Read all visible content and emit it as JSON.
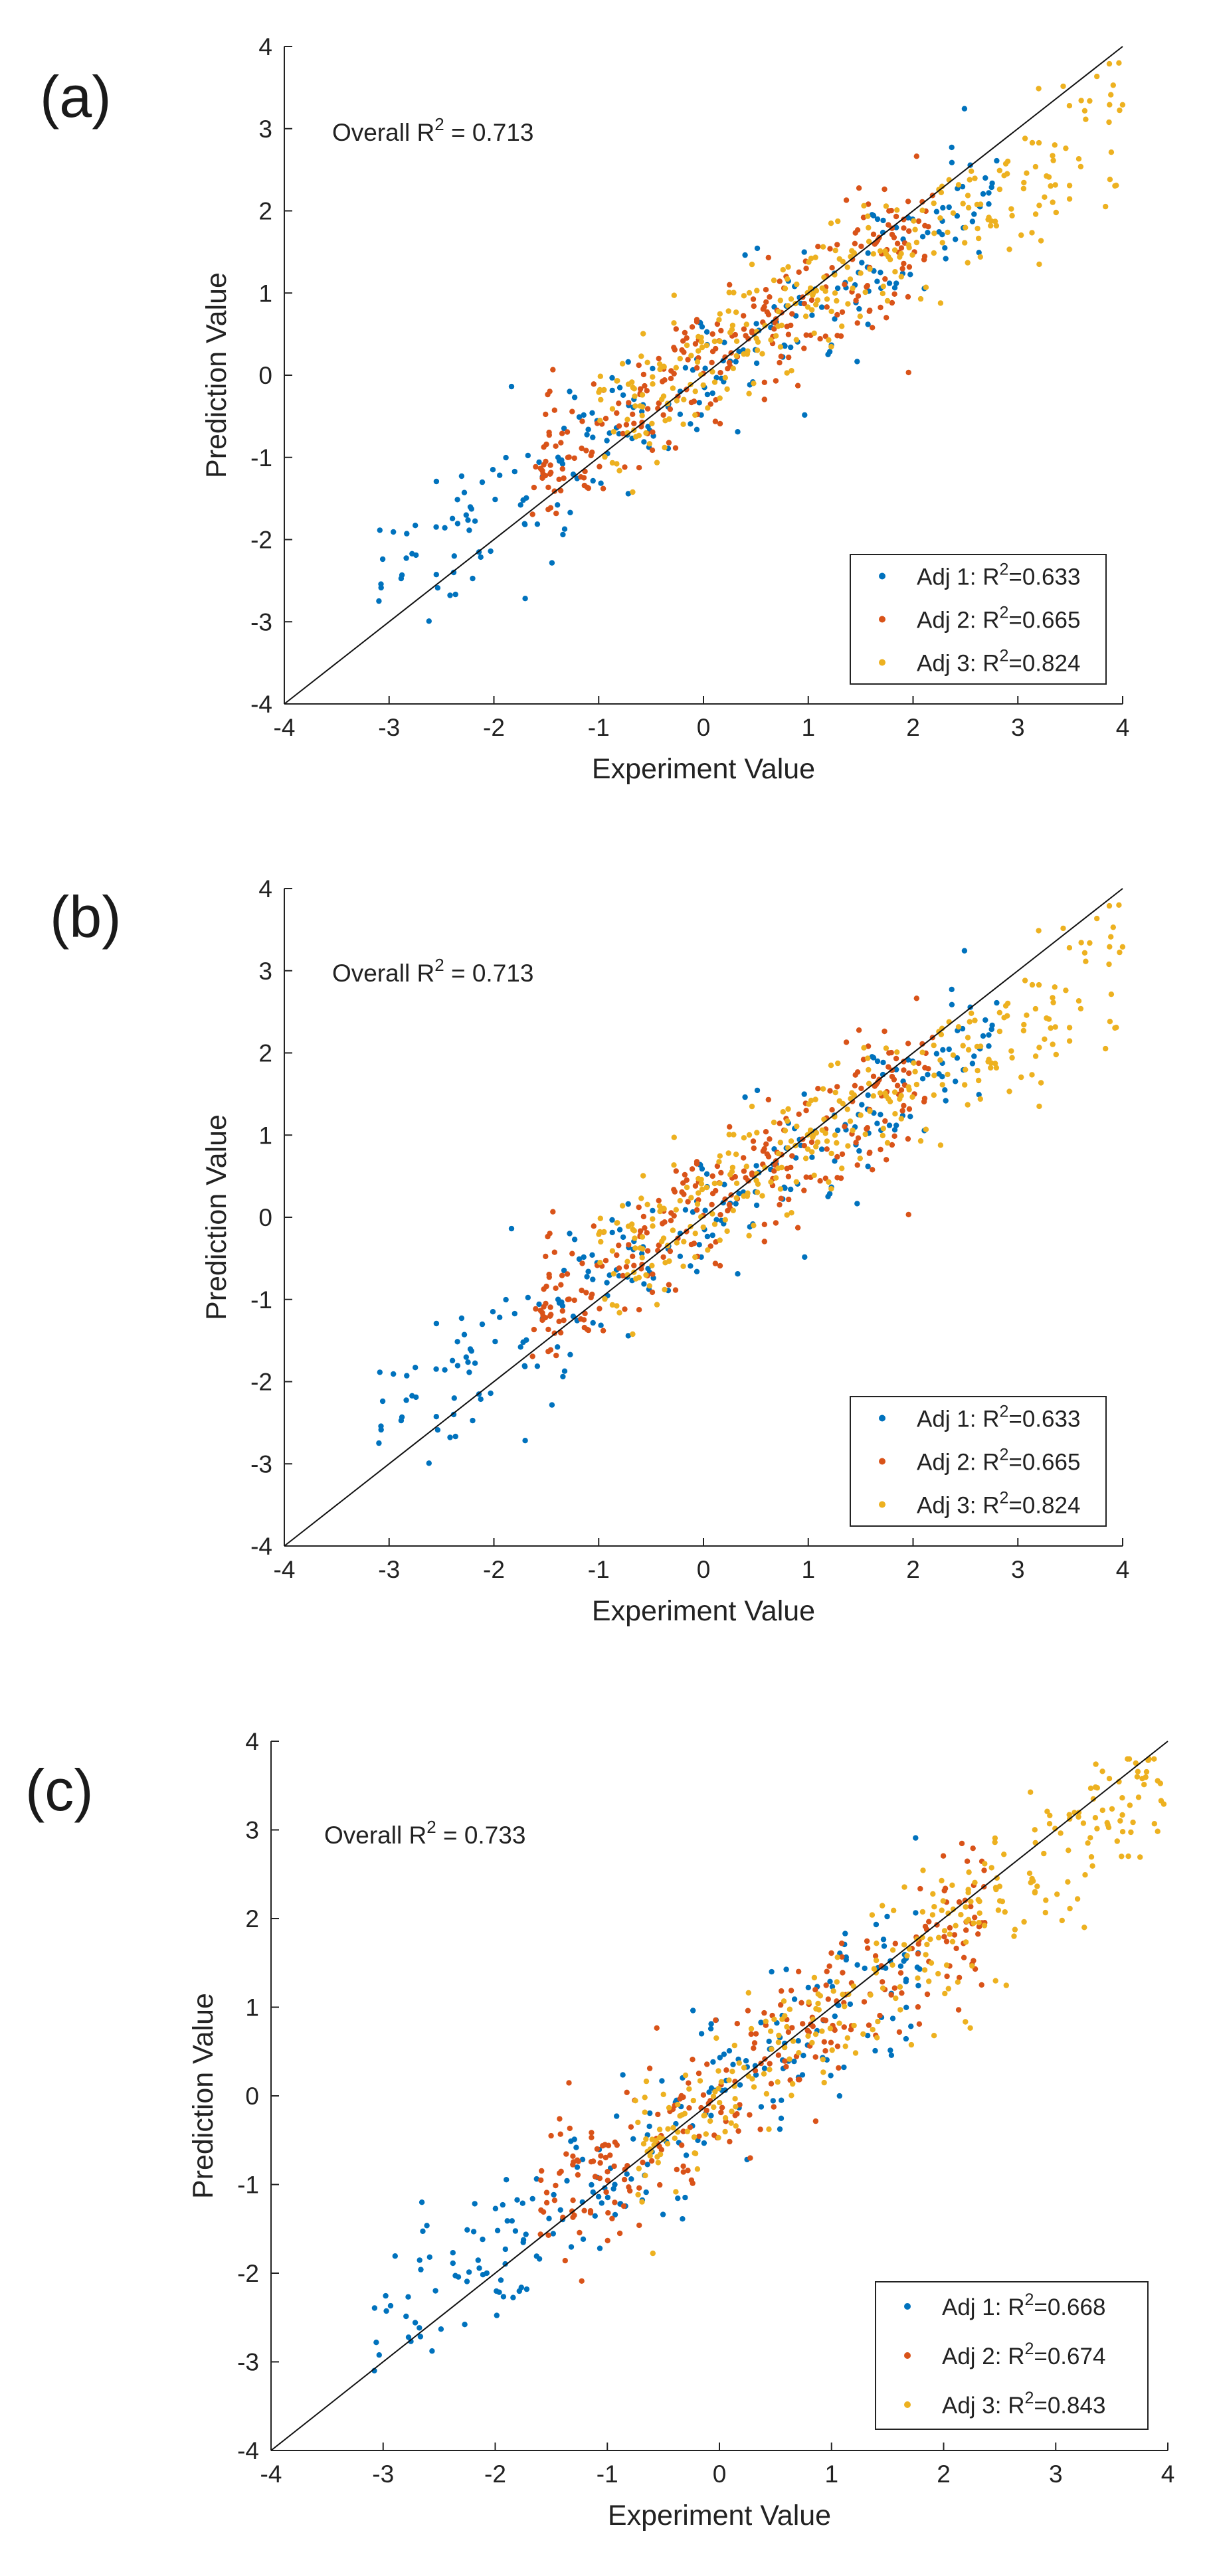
{
  "colors": {
    "adj1": "#0072BD",
    "adj2": "#D95319",
    "adj3": "#EDB120",
    "axis": "#222222",
    "line": "#111111"
  },
  "chart_data": [
    {
      "type": "scatter",
      "panel_label": "(a)",
      "xlabel": "Experiment Value",
      "ylabel": "Prediction Value",
      "xlim": [
        -4,
        4
      ],
      "ylim": [
        -4,
        4
      ],
      "xticks": [
        "-4",
        "-3",
        "-2",
        "-1",
        "0",
        "1",
        "2",
        "3",
        "4"
      ],
      "yticks": [
        "-4",
        "-3",
        "-2",
        "-1",
        "0",
        "1",
        "2",
        "3",
        "4"
      ],
      "overall_prefix": "Overall R",
      "overall_exp": "2",
      "overall_suffix": " = 0.713",
      "reference_line": "y = x",
      "legend_position": "bottom-right",
      "series": [
        {
          "name": "Adj 1",
          "label_prefix": "Adj 1: R",
          "label_exp": "2",
          "label_value": "=0.633",
          "r2": 0.633,
          "n": 230,
          "x_range": [
            -3.1,
            2.8
          ],
          "slope": 0.8,
          "intercept": 0.0,
          "noise": 0.45
        },
        {
          "name": "Adj 2",
          "label_prefix": "Adj 2: R",
          "label_exp": "2",
          "label_value": "=0.665",
          "r2": 0.665,
          "n": 260,
          "x_range": [
            -1.7,
            2.2
          ],
          "slope": 0.78,
          "intercept": 0.08,
          "noise": 0.42
        },
        {
          "name": "Adj 3",
          "label_prefix": "Adj 3: R",
          "label_exp": "2",
          "label_value": "=0.824",
          "r2": 0.824,
          "n": 290,
          "x_range": [
            -1.0,
            4.0
          ],
          "slope": 0.72,
          "intercept": 0.15,
          "noise": 0.4
        }
      ],
      "seed": 11
    },
    {
      "type": "scatter",
      "panel_label": "(b)",
      "xlabel": "Experiment Value",
      "ylabel": "Prediction Value",
      "xlim": [
        -4,
        4
      ],
      "ylim": [
        -4,
        4
      ],
      "xticks": [
        "-4",
        "-3",
        "-2",
        "-1",
        "0",
        "1",
        "2",
        "3",
        "4"
      ],
      "yticks": [
        "-4",
        "-3",
        "-2",
        "-1",
        "0",
        "1",
        "2",
        "3",
        "4"
      ],
      "overall_prefix": "Overall R",
      "overall_exp": "2",
      "overall_suffix": " = 0.713",
      "reference_line": "y = x",
      "legend_position": "bottom-right",
      "series": [
        {
          "name": "Adj 1",
          "label_prefix": "Adj 1: R",
          "label_exp": "2",
          "label_value": "=0.633",
          "r2": 0.633,
          "n": 230,
          "x_range": [
            -3.1,
            2.8
          ],
          "slope": 0.8,
          "intercept": 0.0,
          "noise": 0.45
        },
        {
          "name": "Adj 2",
          "label_prefix": "Adj 2: R",
          "label_exp": "2",
          "label_value": "=0.665",
          "r2": 0.665,
          "n": 260,
          "x_range": [
            -1.7,
            2.2
          ],
          "slope": 0.78,
          "intercept": 0.08,
          "noise": 0.42
        },
        {
          "name": "Adj 3",
          "label_prefix": "Adj 3: R",
          "label_exp": "2",
          "label_value": "=0.824",
          "r2": 0.824,
          "n": 290,
          "x_range": [
            -1.0,
            4.0
          ],
          "slope": 0.72,
          "intercept": 0.15,
          "noise": 0.4
        }
      ],
      "seed": 11
    },
    {
      "type": "scatter",
      "panel_label": "(c)",
      "xlabel": "Experiment Value",
      "ylabel": "Prediction Value",
      "xlim": [
        -4,
        4
      ],
      "ylim": [
        -4,
        4
      ],
      "xticks": [
        "-4",
        "-3",
        "-2",
        "-1",
        "0",
        "1",
        "2",
        "3",
        "4"
      ],
      "yticks": [
        "-4",
        "-3",
        "-2",
        "-1",
        "0",
        "1",
        "2",
        "3",
        "4"
      ],
      "overall_prefix": "Overall R",
      "overall_exp": "2",
      "overall_suffix": " = 0.733",
      "reference_line": "y = x",
      "legend_position": "bottom-right",
      "series": [
        {
          "name": "Adj 1",
          "label_prefix": "Adj 1: R",
          "label_exp": "2",
          "label_value": "=0.668",
          "r2": 0.668,
          "n": 230,
          "x_range": [
            -3.1,
            1.8
          ],
          "slope": 0.85,
          "intercept": -0.05,
          "noise": 0.5
        },
        {
          "name": "Adj 2",
          "label_prefix": "Adj 2: R",
          "label_exp": "2",
          "label_value": "=0.674",
          "r2": 0.674,
          "n": 260,
          "x_range": [
            -1.6,
            2.4
          ],
          "slope": 0.85,
          "intercept": 0.05,
          "noise": 0.45
        },
        {
          "name": "Adj 3",
          "label_prefix": "Adj 3: R",
          "label_exp": "2",
          "label_value": "=0.843",
          "r2": 0.843,
          "n": 300,
          "x_range": [
            -0.8,
            4.0
          ],
          "slope": 0.88,
          "intercept": 0.05,
          "noise": 0.42
        }
      ],
      "seed": 29
    }
  ]
}
